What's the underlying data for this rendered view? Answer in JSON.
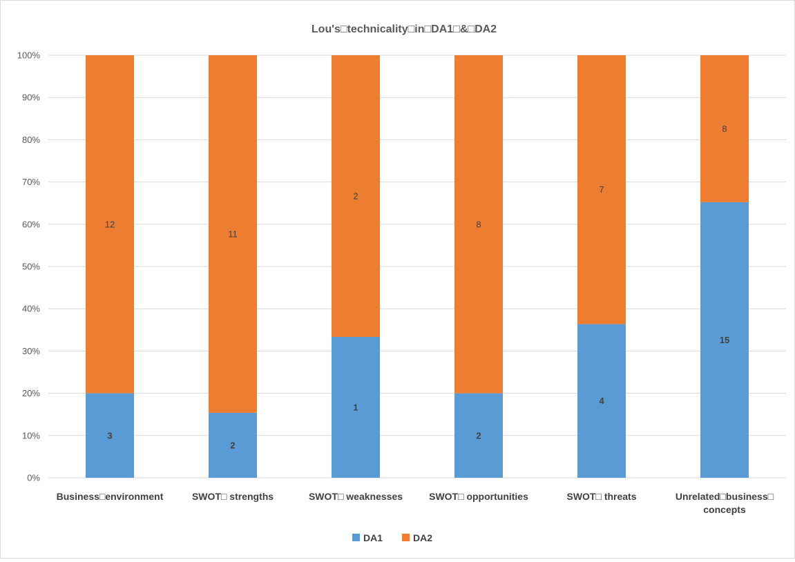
{
  "chart_data": {
    "type": "bar",
    "stacked": "percent",
    "title": "Lou's□technicality□in□DA1□&□DA2",
    "categories": [
      [
        "Business□environment"
      ],
      [
        "SWOT□ strengths"
      ],
      [
        "SWOT□ weaknesses"
      ],
      [
        "SWOT□ opportunities"
      ],
      [
        "SWOT□ threats"
      ],
      [
        "Unrelated□business□",
        "concepts"
      ]
    ],
    "series": [
      {
        "name": "DA1",
        "color": "#5b9bd5",
        "values": [
          3,
          2,
          1,
          2,
          4,
          15
        ]
      },
      {
        "name": "DA2",
        "color": "#ed7d31",
        "values": [
          12,
          11,
          2,
          8,
          7,
          8
        ]
      }
    ],
    "ylim": [
      0,
      100
    ],
    "yticks": [
      "0%",
      "10%",
      "20%",
      "30%",
      "40%",
      "50%",
      "60%",
      "70%",
      "80%",
      "90%",
      "100%"
    ],
    "grid": true,
    "legend": "bottom"
  }
}
